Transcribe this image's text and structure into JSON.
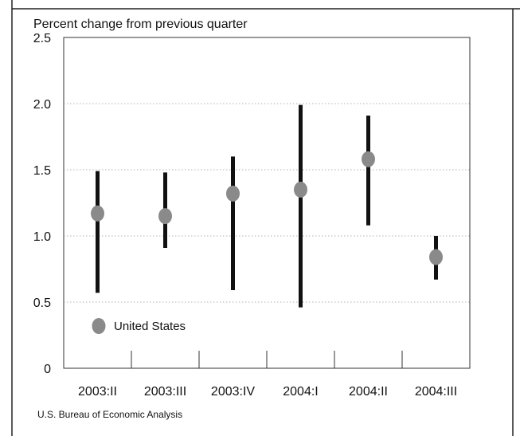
{
  "chart_data": {
    "type": "scatter",
    "ylabel": "Percent change from previous quarter",
    "categories": [
      "2003:II",
      "2003:III",
      "2003:IV",
      "2004:I",
      "2004:II",
      "2004:III"
    ],
    "series": [
      {
        "name": "United States",
        "values": [
          1.17,
          1.15,
          1.32,
          1.35,
          1.58,
          0.84
        ]
      }
    ],
    "ranges": [
      {
        "low": 0.57,
        "high": 1.49
      },
      {
        "low": 0.91,
        "high": 1.48
      },
      {
        "low": 0.59,
        "high": 1.6
      },
      {
        "low": 0.46,
        "high": 1.99
      },
      {
        "low": 1.08,
        "high": 1.91
      },
      {
        "low": 0.67,
        "high": 1.0
      }
    ],
    "ylim": [
      0,
      2.5
    ],
    "yticks": [
      "0",
      "0.5",
      "1.0",
      "1.5",
      "2.0",
      "2.5"
    ],
    "grid": true,
    "legend": "bottom-left",
    "colors": {
      "range": "#111111",
      "point": "#8a8a8a",
      "grid": "#9a9a9a",
      "frame": "#333333"
    }
  },
  "source": "U.S. Bureau of Economic Analysis"
}
